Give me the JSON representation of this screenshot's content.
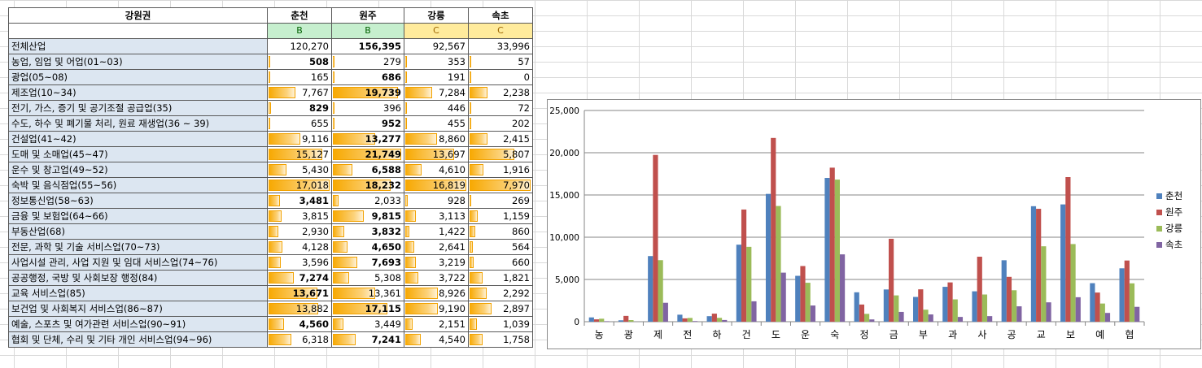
{
  "table": {
    "corner_label": "강원권",
    "columns": [
      "춘천",
      "원주",
      "강릉",
      "속초"
    ],
    "grades": [
      "B",
      "B",
      "C",
      "C"
    ],
    "rows": [
      {
        "label": "전체산업",
        "values": [
          "120,270",
          "156,395",
          "92,567",
          "33,996"
        ],
        "bold": [
          false,
          true,
          false,
          false
        ],
        "bar": false
      },
      {
        "label": "농업, 임업 및 어업(01~03)",
        "values": [
          "508",
          "279",
          "353",
          "57"
        ],
        "bold": [
          true,
          false,
          false,
          false
        ],
        "bar": true,
        "level": [
          0,
          0,
          0,
          0
        ]
      },
      {
        "label": "광업(05~08)",
        "values": [
          "165",
          "686",
          "191",
          "0"
        ],
        "bold": [
          false,
          true,
          false,
          false
        ],
        "bar": true,
        "level": [
          0,
          0,
          0,
          0
        ]
      },
      {
        "label": "제조업(10~34)",
        "values": [
          "7,767",
          "19,739",
          "7,284",
          "2,238"
        ],
        "bold": [
          false,
          true,
          false,
          false
        ],
        "bar": true,
        "level": [
          0.44,
          0.95,
          0.44,
          0.29
        ]
      },
      {
        "label": "전기, 가스, 증기 및 공기조절 공급업(35)",
        "values": [
          "829",
          "396",
          "446",
          "72"
        ],
        "bold": [
          true,
          false,
          false,
          false
        ],
        "bar": true,
        "level": [
          0.04,
          0,
          0,
          0
        ]
      },
      {
        "label": "수도, 하수 및 폐기물 처리, 원료 재생업(36 ~ 39)",
        "values": [
          "655",
          "952",
          "455",
          "202"
        ],
        "bold": [
          false,
          true,
          false,
          false
        ],
        "bar": true,
        "level": [
          0,
          0,
          0,
          0
        ]
      },
      {
        "label": "건설업(41~42)",
        "values": [
          "9,116",
          "13,277",
          "8,860",
          "2,415"
        ],
        "bold": [
          false,
          true,
          false,
          false
        ],
        "bar": true,
        "level": [
          0.52,
          0.62,
          0.52,
          0.3
        ]
      },
      {
        "label": "도매 및 소매업(45~47)",
        "values": [
          "15,127",
          "21,749",
          "13,697",
          "5,807"
        ],
        "bold": [
          false,
          true,
          false,
          false
        ],
        "bar": true,
        "level": [
          0.88,
          1.0,
          0.8,
          0.73
        ]
      },
      {
        "label": "운수 및 창고업(49~52)",
        "values": [
          "5,430",
          "6,588",
          "4,610",
          "1,916"
        ],
        "bold": [
          false,
          true,
          false,
          false
        ],
        "bar": true,
        "level": [
          0.3,
          0.29,
          0.27,
          0.23
        ]
      },
      {
        "label": "숙박 및 음식점업(55~56)",
        "values": [
          "17,018",
          "18,232",
          "16,819",
          "7,970"
        ],
        "bold": [
          false,
          true,
          false,
          false
        ],
        "bar": true,
        "level": [
          1.0,
          0.84,
          1.0,
          1.0
        ]
      },
      {
        "label": "정보통신업(58~63)",
        "values": [
          "3,481",
          "2,033",
          "928",
          "269"
        ],
        "bold": [
          true,
          false,
          false,
          false
        ],
        "bar": true,
        "level": [
          0.19,
          0.08,
          0.04,
          0
        ]
      },
      {
        "label": "금융 및 보험업(64~66)",
        "values": [
          "3,815",
          "9,815",
          "3,113",
          "1,159"
        ],
        "bold": [
          false,
          true,
          false,
          false
        ],
        "bar": true,
        "level": [
          0.21,
          0.45,
          0.18,
          0.13
        ]
      },
      {
        "label": "부동산업(68)",
        "values": [
          "2,930",
          "3,832",
          "1,422",
          "860"
        ],
        "bold": [
          false,
          true,
          false,
          false
        ],
        "bar": true,
        "level": [
          0.16,
          0.17,
          0.07,
          0.1
        ]
      },
      {
        "label": "전문, 과학 및 기술 서비스업(70~73)",
        "values": [
          "4,128",
          "4,650",
          "2,641",
          "564"
        ],
        "bold": [
          false,
          true,
          false,
          false
        ],
        "bar": true,
        "level": [
          0.23,
          0.21,
          0.15,
          0.06
        ]
      },
      {
        "label": "사업시설 관리, 사업 지원 및 임대 서비스업(74~76)",
        "values": [
          "3,596",
          "7,693",
          "3,219",
          "660"
        ],
        "bold": [
          false,
          true,
          false,
          false
        ],
        "bar": true,
        "level": [
          0.2,
          0.35,
          0.18,
          0.07
        ]
      },
      {
        "label": "공공행정, 국방 및 사회보장 행정(84)",
        "values": [
          "7,274",
          "5,308",
          "3,722",
          "1,821"
        ],
        "bold": [
          true,
          false,
          false,
          false
        ],
        "bar": true,
        "level": [
          0.42,
          0.24,
          0.22,
          0.22
        ]
      },
      {
        "label": "교육 서비스업(85)",
        "values": [
          "13,671",
          "13,361",
          "8,926",
          "2,292"
        ],
        "bold": [
          true,
          false,
          false,
          false
        ],
        "bar": true,
        "level": [
          0.8,
          0.61,
          0.53,
          0.28
        ]
      },
      {
        "label": "보건업 및 사회복지 서비스업(86~87)",
        "values": [
          "13,882",
          "17,115",
          "9,190",
          "2,897"
        ],
        "bold": [
          false,
          true,
          false,
          false
        ],
        "bar": true,
        "level": [
          0.81,
          0.79,
          0.54,
          0.36
        ]
      },
      {
        "label": "예술, 스포츠 및 여가관련 서비스업(90~91)",
        "values": [
          "4,560",
          "3,449",
          "2,151",
          "1,039"
        ],
        "bold": [
          true,
          false,
          false,
          false
        ],
        "bar": true,
        "level": [
          0.26,
          0.15,
          0.12,
          0.12
        ]
      },
      {
        "label": "협회 및 단체, 수리 및 기타 개인 서비스업(94~96)",
        "values": [
          "6,318",
          "7,241",
          "4,540",
          "1,758"
        ],
        "bold": [
          false,
          true,
          false,
          false
        ],
        "bar": true,
        "level": [
          0.37,
          0.33,
          0.26,
          0.21
        ]
      }
    ]
  },
  "chart_data": {
    "type": "bar",
    "categories": [
      "농",
      "광",
      "제",
      "전",
      "하",
      "건",
      "도",
      "운",
      "숙",
      "정",
      "금",
      "부",
      "과",
      "사",
      "공",
      "교",
      "보",
      "예",
      "협"
    ],
    "series": [
      {
        "name": "춘천",
        "color": "#4f81bd",
        "values": [
          508,
          165,
          7767,
          829,
          655,
          9116,
          15127,
          5430,
          17018,
          3481,
          3815,
          2930,
          4128,
          3596,
          7274,
          13671,
          13882,
          4560,
          6318
        ]
      },
      {
        "name": "원주",
        "color": "#c0504d",
        "values": [
          279,
          686,
          19739,
          396,
          952,
          13277,
          21749,
          6588,
          18232,
          2033,
          9815,
          3832,
          4650,
          7693,
          5308,
          13361,
          17115,
          3449,
          7241
        ]
      },
      {
        "name": "강릉",
        "color": "#9bbb59",
        "values": [
          353,
          191,
          7284,
          446,
          455,
          8860,
          13697,
          4610,
          16819,
          928,
          3113,
          1422,
          2641,
          3219,
          3722,
          8926,
          9190,
          2151,
          4540
        ]
      },
      {
        "name": "속초",
        "color": "#8064a2",
        "values": [
          57,
          0,
          2238,
          72,
          202,
          2415,
          5807,
          1916,
          7970,
          269,
          1159,
          860,
          564,
          660,
          1821,
          2292,
          2897,
          1039,
          1758
        ]
      }
    ],
    "ylim": [
      0,
      25000
    ],
    "yticks": [
      "0",
      "5,000",
      "10,000",
      "15,000",
      "20,000",
      "25,000"
    ],
    "ytick_values": [
      0,
      5000,
      10000,
      15000,
      20000,
      25000
    ],
    "grid": true,
    "legend": "right"
  }
}
